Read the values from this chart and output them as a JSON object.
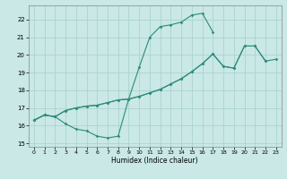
{
  "xlabel": "Humidex (Indice chaleur)",
  "xlim": [
    -0.5,
    23.5
  ],
  "ylim": [
    14.8,
    22.8
  ],
  "xticks": [
    0,
    1,
    2,
    3,
    4,
    5,
    6,
    7,
    8,
    9,
    10,
    11,
    12,
    13,
    14,
    15,
    16,
    17,
    18,
    19,
    20,
    21,
    22,
    23
  ],
  "yticks": [
    15,
    16,
    17,
    18,
    19,
    20,
    21,
    22
  ],
  "bg_color": "#c9e8e6",
  "grid_color": "#aad4d0",
  "line_color": "#2e8b7a",
  "line1_x": [
    0,
    1,
    2,
    3,
    4,
    5,
    6,
    7,
    8,
    9,
    10,
    11,
    12,
    13,
    14,
    15,
    16,
    17
  ],
  "line1_y": [
    16.3,
    16.6,
    16.5,
    16.1,
    15.8,
    15.7,
    15.4,
    15.3,
    15.4,
    17.5,
    19.3,
    21.0,
    21.6,
    21.7,
    21.85,
    22.25,
    22.35,
    21.3
  ],
  "line2_x": [
    0,
    1,
    2,
    3,
    4,
    5,
    6,
    7,
    8,
    9,
    10,
    11,
    12,
    13,
    14,
    15,
    16,
    17,
    18,
    19,
    20,
    21,
    22
  ],
  "line2_y": [
    16.3,
    16.6,
    16.5,
    16.85,
    17.0,
    17.1,
    17.15,
    17.3,
    17.45,
    17.5,
    17.65,
    17.85,
    18.05,
    18.35,
    18.65,
    19.05,
    19.5,
    20.05,
    19.35,
    19.25,
    20.5,
    20.5,
    19.65
  ],
  "line3_x": [
    0,
    1,
    2,
    3,
    4,
    5,
    6,
    7,
    8,
    9,
    10,
    11,
    12,
    13,
    14,
    15,
    16,
    17,
    18,
    19,
    20,
    21,
    22,
    23
  ],
  "line3_y": [
    16.3,
    16.6,
    16.5,
    16.85,
    17.0,
    17.1,
    17.15,
    17.3,
    17.45,
    17.5,
    17.65,
    17.85,
    18.05,
    18.35,
    18.65,
    19.05,
    19.5,
    20.05,
    19.35,
    19.25,
    20.5,
    20.5,
    19.65,
    19.75
  ]
}
